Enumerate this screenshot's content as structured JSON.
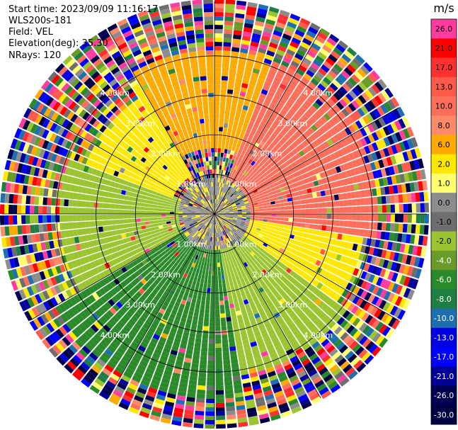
{
  "info": {
    "start_time": "Start time: 2023/09/09 11:16:17",
    "instrument": "WLS200s-181",
    "field": "Field: VEL",
    "elevation": "Elevation(deg): 35.30",
    "nrays": "NRays: 120"
  },
  "chart_data": {
    "type": "heatmap",
    "projection": "polar-ppi",
    "field": "VEL",
    "rays": 120,
    "range_rings_km": [
      1.0,
      2.0,
      3.0,
      4.0
    ],
    "range_ring_labels": [
      "1.00km",
      "2.00km",
      "3.00km",
      "4.00km"
    ],
    "colorbar": {
      "unit": "m/s",
      "tick_labels": [
        "26.0",
        "21.0",
        "17.0",
        "13.0",
        "10.0",
        "8.0",
        "6.0",
        "2.0",
        "1.0",
        "0.0",
        "-1.0",
        "-2.0",
        "-4.0",
        "-6.0",
        "-8.0",
        "-10.0",
        "-13.0",
        "-17.0",
        "-21.0",
        "-26.0",
        "-30.0"
      ],
      "colors": [
        "#ff3ca0",
        "#ff0000",
        "#ff3030",
        "#ff5a4a",
        "#ff6e5a",
        "#ff8a6a",
        "#ffaa00",
        "#ffe800",
        "#ffff70",
        "#8c8c8c",
        "#6e6e6e",
        "#9ac430",
        "#6a9a28",
        "#2a8a2a",
        "#1e7e44",
        "#1f6fb0",
        "#0000e0",
        "#0000ff",
        "#000096",
        "#000050",
        "#000040"
      ]
    },
    "pattern": {
      "outer_noise_start_km": 4.3,
      "inner_blocks": [
        {
          "az_from": 20,
          "az_to": 100,
          "r_from": 0.8,
          "r_to": 3.8,
          "value": 10.0
        },
        {
          "az_from": 100,
          "az_to": 125,
          "r_from": 0.8,
          "r_to": 3.5,
          "value": 2.0
        },
        {
          "az_from": 330,
          "az_to": 20,
          "r_from": 1.5,
          "r_to": 3.8,
          "value": 6.0
        },
        {
          "az_from": 290,
          "az_to": 330,
          "r_from": 1.0,
          "r_to": 3.2,
          "value": 2.0
        },
        {
          "az_from": 240,
          "az_to": 290,
          "r_from": 0.8,
          "r_to": 3.6,
          "value": -2.0
        },
        {
          "az_from": 170,
          "az_to": 240,
          "r_from": 0.8,
          "r_to": 4.3,
          "value": -6.0
        },
        {
          "az_from": 125,
          "az_to": 170,
          "r_from": 0.8,
          "r_to": 3.8,
          "value": -2.0
        }
      ]
    }
  }
}
